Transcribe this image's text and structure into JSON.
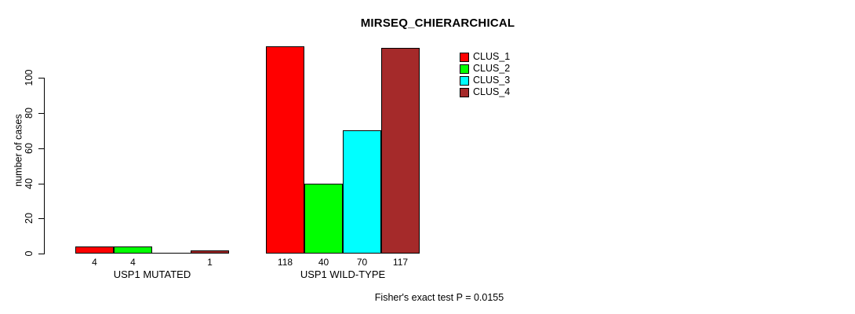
{
  "chart_data": {
    "type": "bar",
    "title": "MIRSEQ_CHIERARCHICAL",
    "xlabel": "",
    "ylabel": "number of cases",
    "categories": [
      "USP1 MUTATED",
      "USP1 WILD-TYPE"
    ],
    "series": [
      {
        "name": "CLUS_1",
        "color": "#FF0000",
        "values": [
          4,
          118
        ]
      },
      {
        "name": "CLUS_2",
        "color": "#00FF00",
        "values": [
          4,
          40
        ]
      },
      {
        "name": "CLUS_3",
        "color": "#00FFFF",
        "values": [
          0,
          70
        ]
      },
      {
        "name": "CLUS_4",
        "color": "#A52A2A",
        "values": [
          1,
          117
        ]
      }
    ],
    "bar_value_labels": [
      [
        "4",
        "4",
        "",
        "1"
      ],
      [
        "118",
        "40",
        "70",
        "117"
      ]
    ],
    "yticks": [
      0,
      20,
      40,
      60,
      80,
      100
    ],
    "ylim": [
      0,
      118
    ],
    "grid": false,
    "legend_position": "inside-top-right",
    "annotation": "Fisher's exact test P = 0.0155",
    "axis_color": "#000000",
    "background_color": "#FFFFFF"
  }
}
